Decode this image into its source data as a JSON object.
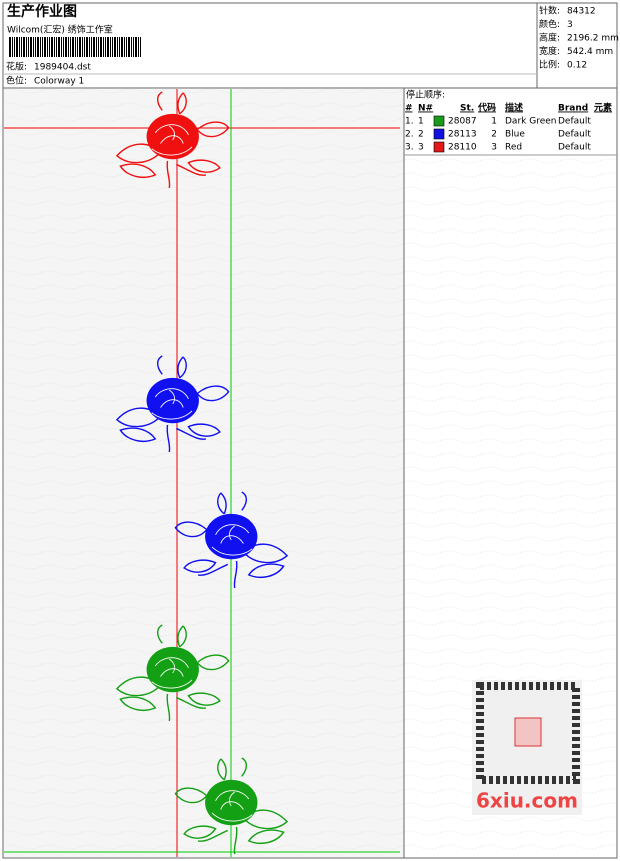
{
  "header": {
    "title": "生产作业图",
    "subtitle": "Wilcom(汇宏) 绣饰工作室",
    "design_label": "花版:",
    "design": "1989404.dst",
    "colorway_label": "色位:",
    "colorway": "Colorway 1"
  },
  "stats": [
    [
      "针数:",
      "84312"
    ],
    [
      "颜色:",
      "3"
    ],
    [
      "高度:",
      "2196.2 mm"
    ],
    [
      "宽度:",
      "542.4 mm"
    ],
    [
      "比例:",
      "0.12"
    ]
  ],
  "stop_sequence": {
    "title": "停止顺序:",
    "columns": [
      "#",
      "N#",
      "St.",
      "代码",
      "描述",
      "Brand",
      "元素"
    ],
    "rows": [
      {
        "index": "1.",
        "needle": "1",
        "stitches": "28087",
        "code": "1",
        "description": "Dark Green",
        "brand": "Default",
        "color": "#1a9a1a"
      },
      {
        "index": "2.",
        "needle": "2",
        "stitches": "28113",
        "code": "2",
        "description": "Blue",
        "brand": "Default",
        "color": "#1010e0"
      },
      {
        "index": "3.",
        "needle": "3",
        "stitches": "28110",
        "code": "3",
        "description": "Red",
        "brand": "Default",
        "color": "#e01818"
      }
    ]
  },
  "watermark": "6xiu.com"
}
